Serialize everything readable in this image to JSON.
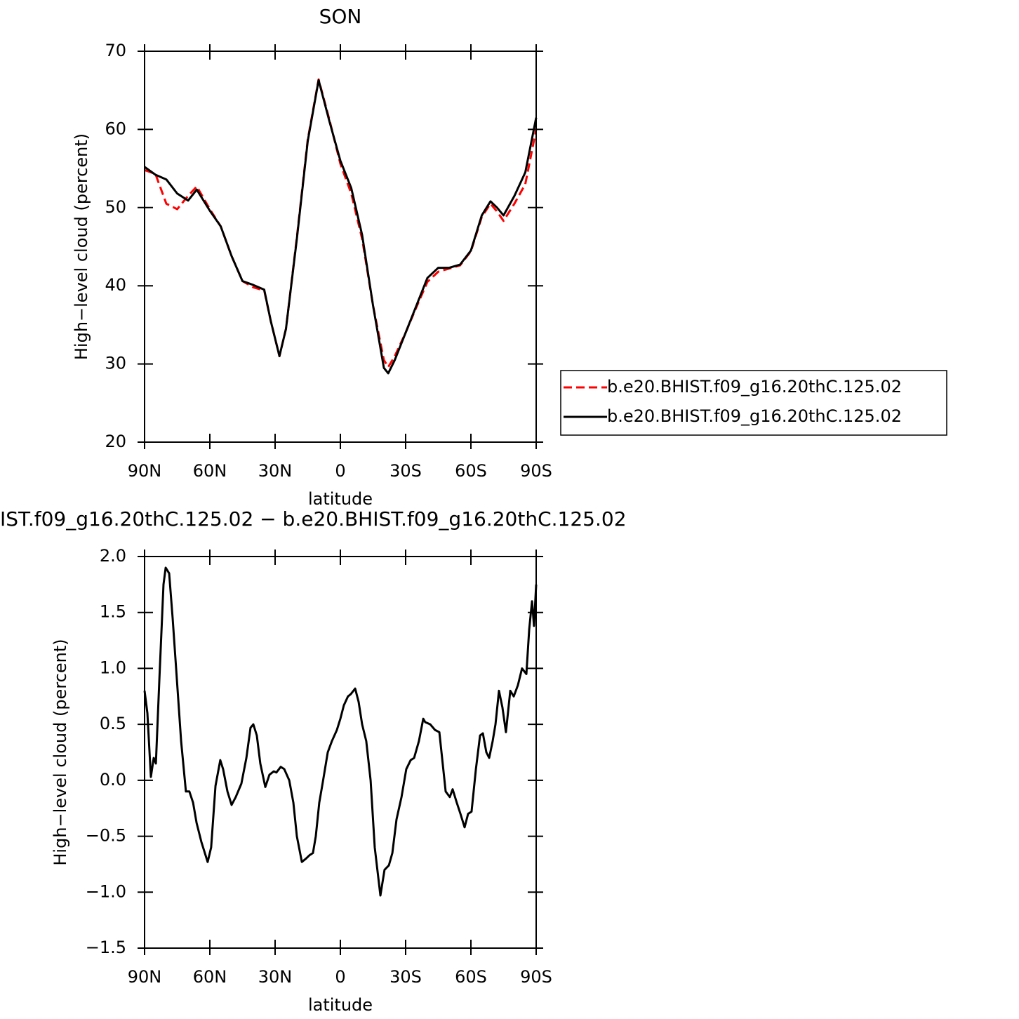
{
  "chart_data": [
    {
      "type": "line",
      "title": "SON",
      "x_label": "latitude",
      "y_label": "High−level cloud (percent)",
      "x": [
        90,
        85,
        80,
        75,
        70,
        66,
        60,
        55,
        50,
        45,
        40,
        35,
        32,
        28,
        25,
        20,
        15,
        10,
        5,
        0,
        -5,
        -10,
        -15,
        -20,
        -22,
        -25,
        -30,
        -35,
        -40,
        -45,
        -50,
        -55,
        -60,
        -65,
        -69,
        -72,
        -75,
        -80,
        -85,
        -90
      ],
      "series": [
        {
          "name": "b.e20.BHIST.f09_g16.20thC.125.02",
          "color": "#ff0000",
          "line_style": "dashed",
          "values": [
            54.8,
            54.3,
            50.5,
            49.8,
            51.5,
            52.7,
            49.8,
            47.6,
            43.8,
            40.6,
            39.8,
            39.4,
            35.5,
            31.0,
            34.5,
            46.2,
            58.7,
            66.4,
            61.2,
            55.6,
            51.8,
            46.0,
            37.5,
            30.5,
            29.6,
            31.0,
            34.0,
            37.3,
            40.5,
            41.8,
            42.2,
            42.6,
            44.4,
            48.8,
            50.5,
            49.5,
            48.3,
            50.5,
            53.0,
            60.0
          ]
        },
        {
          "name": "b.e20.BHIST.f09_g16.20thC.125.02",
          "color": "#000000",
          "line_style": "solid",
          "values": [
            55.2,
            54.2,
            53.6,
            51.8,
            50.9,
            52.3,
            49.6,
            47.6,
            43.8,
            40.6,
            40.1,
            39.5,
            35.5,
            31.0,
            34.5,
            46.0,
            58.5,
            66.3,
            61.0,
            56.0,
            52.5,
            46.5,
            37.5,
            29.5,
            28.8,
            30.5,
            34.0,
            37.5,
            41.0,
            42.3,
            42.3,
            42.7,
            44.5,
            49.0,
            50.8,
            50.0,
            49.0,
            51.5,
            54.5,
            61.5
          ]
        }
      ],
      "xlim": [
        90,
        -90
      ],
      "xticks": [
        {
          "value": 90,
          "label": "90N"
        },
        {
          "value": 60,
          "label": "60N"
        },
        {
          "value": 30,
          "label": "30N"
        },
        0,
        {
          "value": -30,
          "label": "30S"
        },
        {
          "value": -60,
          "label": "60S"
        },
        {
          "value": -90,
          "label": "90S"
        }
      ],
      "ylim": [
        20,
        70
      ],
      "yticks": [
        20,
        30,
        40,
        50,
        60,
        70
      ],
      "legend": "right"
    },
    {
      "type": "line",
      "title": "IST.f09_g16.20thC.125.02 − b.e20.BHIST.f09_g16.20thC.125.02",
      "x_label": "latitude",
      "y_label": "High−level cloud (percent)",
      "x": [
        90,
        88.7,
        87.1,
        85.8,
        84.8,
        83.2,
        81.3,
        80.3,
        78.7,
        77.1,
        75.5,
        73.2,
        71.0,
        69.4,
        67.7,
        66.1,
        63.9,
        61.0,
        59.4,
        57.4,
        55.2,
        53.9,
        51.9,
        50.0,
        48.1,
        45.5,
        43.2,
        41.3,
        40.0,
        38.4,
        36.8,
        34.5,
        32.6,
        30.6,
        29.4,
        27.4,
        25.8,
        23.5,
        21.6,
        20.0,
        17.7,
        15.8,
        14.2,
        12.6,
        11.3,
        9.7,
        8.1,
        5.8,
        3.9,
        1.6,
        0,
        -1.6,
        -3.5,
        -4.8,
        -6.8,
        -8.4,
        -10.0,
        -11.9,
        -13.9,
        -15.8,
        -18.4,
        -20.3,
        -22.3,
        -23.9,
        -25.8,
        -28.1,
        -30.3,
        -32.3,
        -33.9,
        -36.1,
        -38.1,
        -39.0,
        -41.3,
        -43.5,
        -45.5,
        -48.4,
        -50.3,
        -51.6,
        -53.5,
        -55.2,
        -57.1,
        -58.7,
        -60.3,
        -62.3,
        -64.2,
        -65.5,
        -67.1,
        -68.4,
        -70.0,
        -71.3,
        -72.9,
        -74.5,
        -76.1,
        -78.1,
        -79.7,
        -81.6,
        -83.5,
        -85.5,
        -86.8,
        -88.1,
        -89.0,
        -90
      ],
      "series": [
        {
          "color": "#000000",
          "line_style": "solid",
          "values": [
            0.8,
            0.6,
            0.03,
            0.2,
            0.15,
            0.9,
            1.75,
            1.9,
            1.85,
            1.45,
            1.0,
            0.35,
            -0.1,
            -0.1,
            -0.2,
            -0.38,
            -0.55,
            -0.73,
            -0.6,
            -0.05,
            0.18,
            0.1,
            -0.1,
            -0.22,
            -0.15,
            -0.03,
            0.2,
            0.47,
            0.5,
            0.4,
            0.15,
            -0.06,
            0.05,
            0.08,
            0.07,
            0.12,
            0.1,
            0.0,
            -0.2,
            -0.5,
            -0.73,
            -0.7,
            -0.67,
            -0.65,
            -0.5,
            -0.2,
            -0.02,
            0.25,
            0.35,
            0.45,
            0.55,
            0.67,
            0.75,
            0.77,
            0.82,
            0.7,
            0.5,
            0.35,
            0.0,
            -0.6,
            -1.03,
            -0.8,
            -0.76,
            -0.65,
            -0.35,
            -0.15,
            0.1,
            0.18,
            0.2,
            0.35,
            0.55,
            0.52,
            0.5,
            0.45,
            0.43,
            -0.1,
            -0.15,
            -0.08,
            -0.2,
            -0.3,
            -0.42,
            -0.3,
            -0.28,
            0.1,
            0.4,
            0.42,
            0.25,
            0.2,
            0.35,
            0.5,
            0.8,
            0.65,
            0.43,
            0.8,
            0.75,
            0.85,
            1.0,
            0.95,
            1.35,
            1.6,
            1.38,
            1.75
          ]
        }
      ],
      "xlim": [
        90,
        -90
      ],
      "xticks": [
        {
          "value": 90,
          "label": "90N"
        },
        {
          "value": 60,
          "label": "60N"
        },
        {
          "value": 30,
          "label": "30N"
        },
        0,
        {
          "value": -30,
          "label": "30S"
        },
        {
          "value": -60,
          "label": "60S"
        },
        {
          "value": -90,
          "label": "90S"
        }
      ],
      "ylim": [
        -1.5,
        2.0
      ],
      "yticks": [
        {
          "value": -1.5,
          "label": "−1.5"
        },
        {
          "value": -1.0,
          "label": "−1.0"
        },
        {
          "value": -0.5,
          "label": "−0.5"
        },
        {
          "value": 0,
          "label": "0.0"
        },
        {
          "value": 0.5,
          "label": "0.5"
        },
        {
          "value": 1.0,
          "label": "1.0"
        },
        {
          "value": 1.5,
          "label": "1.5"
        },
        {
          "value": 2.0,
          "label": "2.0"
        }
      ]
    }
  ]
}
